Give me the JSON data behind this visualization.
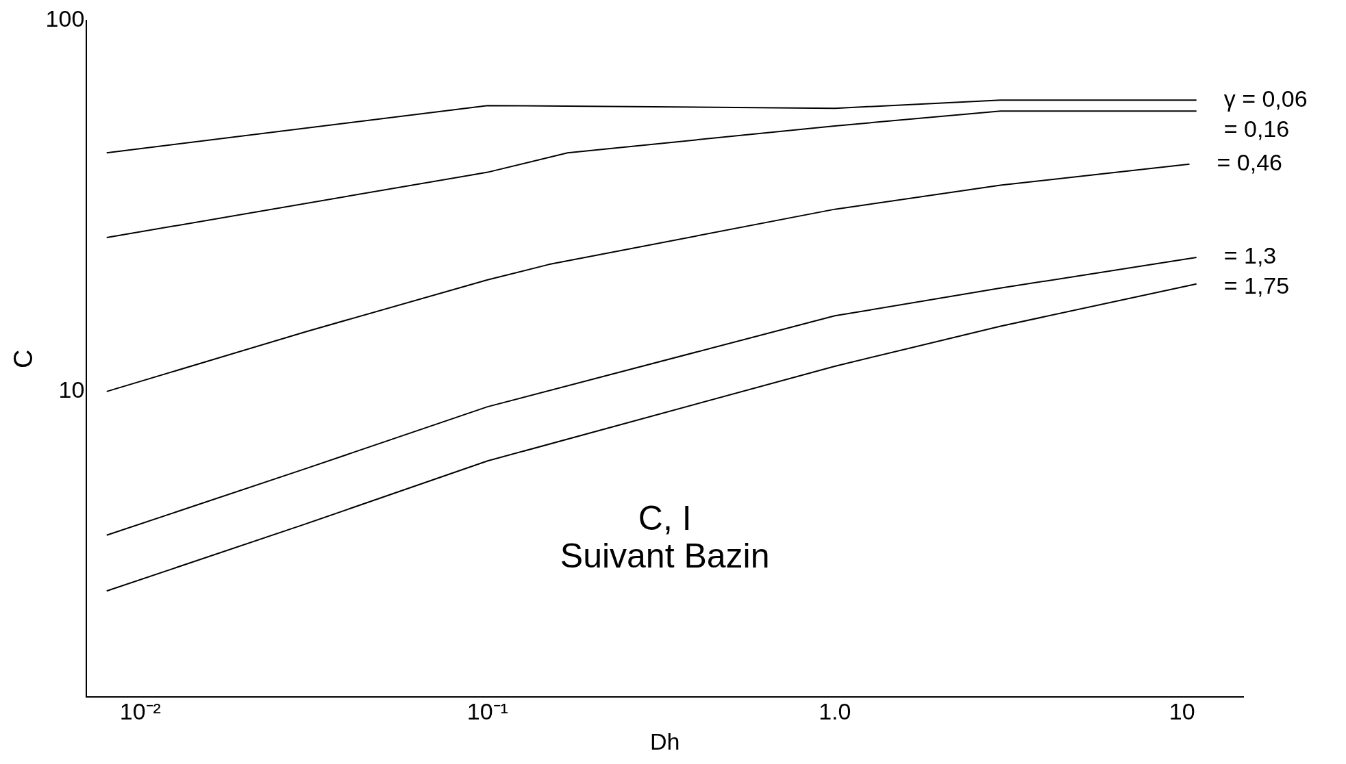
{
  "chart_data": {
    "type": "line",
    "xlabel": "Dh",
    "ylabel": "C",
    "log": "xy",
    "grid": false,
    "legend": false,
    "marker": "none",
    "line_style": "solid",
    "xlim": [
      0.007,
      15
    ],
    "ylim": [
      1.5,
      100
    ],
    "xticks": [
      {
        "value": 0.01,
        "label": "10⁻²"
      },
      {
        "value": 0.1,
        "label": "10⁻¹"
      },
      {
        "value": 1,
        "label": "1.0"
      },
      10
    ],
    "yticks": [
      10,
      100
    ],
    "annotations": [
      "C, I",
      "Suivant Bazin"
    ],
    "series": [
      {
        "name": "γ = 0,06",
        "color": "#000000",
        "x": [
          0.008,
          0.1,
          1,
          3,
          11
        ],
        "values": [
          44,
          59,
          58,
          61,
          61
        ]
      },
      {
        "name": "= 0,16",
        "color": "#000000",
        "x": [
          0.008,
          0.1,
          0.17,
          1,
          3,
          11
        ],
        "values": [
          26,
          39,
          44,
          52,
          57,
          57
        ]
      },
      {
        "name": "= 0,46",
        "color": "#000000",
        "x": [
          0.008,
          0.03,
          0.1,
          0.15,
          1,
          3,
          10.5
        ],
        "values": [
          10,
          14.5,
          20,
          22,
          31,
          36,
          41
        ]
      },
      {
        "name": "= 1,3",
        "color": "#000000",
        "x": [
          0.008,
          0.03,
          0.1,
          1,
          3,
          11
        ],
        "values": [
          4.1,
          6.2,
          9.1,
          16,
          19,
          23
        ]
      },
      {
        "name": "= 1,75",
        "color": "#000000",
        "x": [
          0.008,
          0.03,
          0.1,
          1,
          3,
          11
        ],
        "values": [
          2.9,
          4.4,
          6.5,
          11.7,
          15,
          19.5
        ]
      }
    ]
  }
}
